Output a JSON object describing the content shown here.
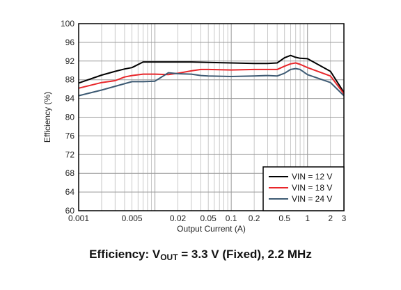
{
  "chart_data": {
    "type": "line",
    "xlabel": "Output Current (A)",
    "ylabel": "Efficiency (%)",
    "xscale": "log",
    "xlim": [
      0.001,
      3
    ],
    "ylim": [
      60,
      100
    ],
    "grid": true,
    "legend_position": "bottom-right",
    "x_ticks": [
      0.001,
      0.005,
      0.02,
      0.05,
      0.1,
      0.2,
      0.5,
      1,
      2,
      3
    ],
    "x_tick_labels": [
      "0.001",
      "0.005",
      "0.02",
      "0.05",
      "0.1",
      "0.2",
      "0.5",
      "1",
      "2",
      "3"
    ],
    "y_ticks": [
      60,
      64,
      68,
      72,
      76,
      80,
      84,
      88,
      92,
      96,
      100
    ],
    "y_tick_labels": [
      "60",
      "64",
      "68",
      "72",
      "76",
      "80",
      "84",
      "88",
      "92",
      "96",
      "100"
    ],
    "series": [
      {
        "name": "VIN = 12 V",
        "color": "#000000",
        "x": [
          0.001,
          0.002,
          0.003,
          0.004,
          0.005,
          0.007,
          0.01,
          0.02,
          0.03,
          0.05,
          0.1,
          0.2,
          0.3,
          0.4,
          0.5,
          0.6,
          0.7,
          0.8,
          1.0,
          2.0,
          3.0
        ],
        "y": [
          87.3,
          89.0,
          89.8,
          90.3,
          90.6,
          91.8,
          91.8,
          91.8,
          91.8,
          91.7,
          91.6,
          91.5,
          91.5,
          91.6,
          92.7,
          93.2,
          92.8,
          92.6,
          92.5,
          89.8,
          85.3
        ]
      },
      {
        "name": "VIN = 18 V",
        "color": "#e8262a",
        "x": [
          0.001,
          0.002,
          0.003,
          0.004,
          0.005,
          0.007,
          0.01,
          0.015,
          0.02,
          0.03,
          0.04,
          0.05,
          0.1,
          0.2,
          0.3,
          0.4,
          0.5,
          0.6,
          0.7,
          0.8,
          1.0,
          2.0,
          3.0
        ],
        "y": [
          86.2,
          87.4,
          87.8,
          88.6,
          88.9,
          89.2,
          89.2,
          89.1,
          89.4,
          89.9,
          90.2,
          90.2,
          90.1,
          90.2,
          90.2,
          90.2,
          90.9,
          91.4,
          91.6,
          91.3,
          90.6,
          88.8,
          85.0
        ]
      },
      {
        "name": "VIN = 24 V",
        "color": "#3d5a73",
        "x": [
          0.001,
          0.002,
          0.003,
          0.005,
          0.007,
          0.01,
          0.015,
          0.02,
          0.03,
          0.04,
          0.05,
          0.1,
          0.2,
          0.3,
          0.4,
          0.5,
          0.6,
          0.7,
          0.8,
          1.0,
          2.0,
          3.0
        ],
        "y": [
          84.6,
          85.8,
          86.6,
          87.6,
          87.6,
          87.7,
          89.5,
          89.3,
          89.2,
          88.9,
          88.8,
          88.7,
          88.8,
          88.9,
          88.8,
          89.4,
          90.2,
          90.4,
          90.2,
          89.1,
          87.4,
          84.6
        ]
      }
    ]
  },
  "caption": {
    "prefix": "Efficiency: V",
    "subscript": "OUT",
    "suffix": " = 3.3 V (Fixed), 2.2 MHz"
  }
}
